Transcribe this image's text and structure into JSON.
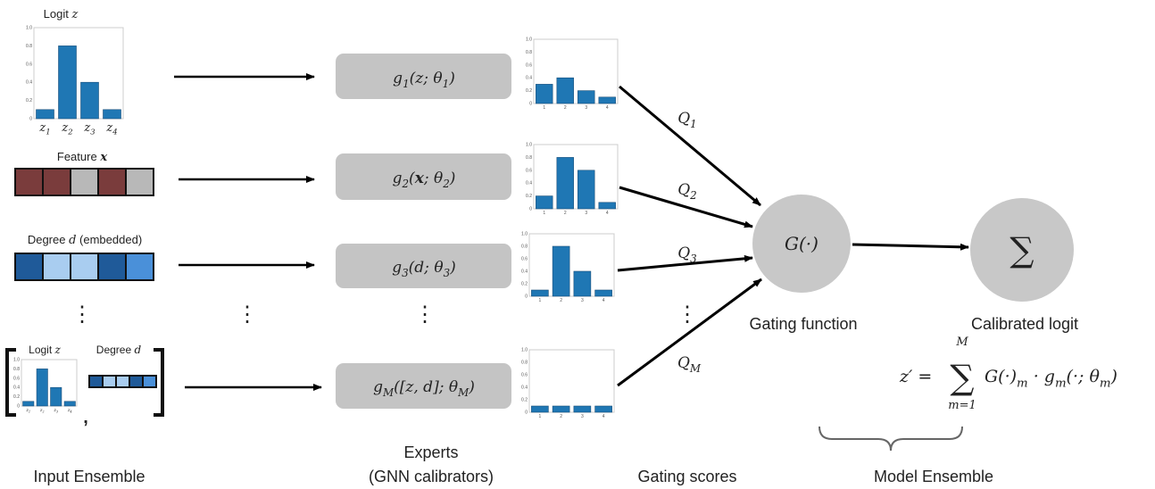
{
  "colors": {
    "bar": "#1f77b4",
    "expert_box": "#c4c4c4",
    "circle": "#c8c8c8",
    "feature_on": "#7a3c3c",
    "feature_off": "#b8b8b8",
    "deg_dark": "#1f5a99",
    "deg_light": "#a9cdf0",
    "deg_mid": "#4a90d9"
  },
  "input": {
    "logit_title": "Logit",
    "logit_var": "z",
    "feature_title": "Feature",
    "feature_var": "x",
    "feature_cells": [
      "on",
      "on",
      "off",
      "on",
      "off"
    ],
    "degree_title": "Degree",
    "degree_var": "d",
    "degree_suffix": "(embedded)",
    "degree_cells": [
      "deg_dark",
      "deg_light",
      "deg_light",
      "deg_dark",
      "deg_mid"
    ],
    "combo_logit_title": "Logit",
    "combo_degree_title": "Degree",
    "ellipsis": "⋮",
    "comma": ",",
    "label": "Input Ensemble"
  },
  "experts": {
    "items": [
      [
        {
          "t": "g"
        },
        {
          "s": "1"
        },
        {
          "t": "(z; θ"
        },
        {
          "s": "1"
        },
        {
          "t": ")"
        }
      ],
      [
        {
          "t": "g"
        },
        {
          "s": "2"
        },
        {
          "t": "("
        },
        {
          "b": "x"
        },
        {
          "t": "; θ"
        },
        {
          "s": "2"
        },
        {
          "t": ")"
        }
      ],
      [
        {
          "t": "g"
        },
        {
          "s": "3"
        },
        {
          "t": "(d; θ"
        },
        {
          "s": "3"
        },
        {
          "t": ")"
        }
      ],
      [
        {
          "t": "g"
        },
        {
          "s": "M"
        },
        {
          "t": "([z, d]; θ"
        },
        {
          "s": "M"
        },
        {
          "t": ")"
        }
      ]
    ],
    "ellipsis": "⋮",
    "label_line1": "Experts",
    "label_line2": "(GNN calibrators)"
  },
  "gating": {
    "q_labels": [
      [
        {
          "t": "Q"
        },
        {
          "s": "1"
        }
      ],
      [
        {
          "t": "Q"
        },
        {
          "s": "2"
        }
      ],
      [
        {
          "t": "Q"
        },
        {
          "s": "3"
        }
      ],
      [
        {
          "t": "Q"
        },
        {
          "s": "M"
        }
      ]
    ],
    "ellipsis": "⋮",
    "label": "Gating scores",
    "node_label": "G(·)",
    "node_caption": "Gating function"
  },
  "ensemble": {
    "node_label": "∑",
    "caption": "Calibrated logit",
    "formula_lhs": "z′ =",
    "sum_symbol": "∑",
    "sum_upper": "M",
    "sum_lower": "m=1",
    "formula_rhs": [
      {
        "t": "G(·)"
      },
      {
        "s": "m"
      },
      {
        "t": " · g"
      },
      {
        "s": "m"
      },
      {
        "t": "(·; θ"
      },
      {
        "s": "m"
      },
      {
        "t": ")"
      }
    ],
    "label": "Model Ensemble"
  },
  "chart_data": [
    {
      "type": "bar",
      "title": "Logit z",
      "categories": [
        "z1",
        "z2",
        "z3",
        "z4"
      ],
      "values": [
        0.1,
        0.8,
        0.4,
        0.1
      ],
      "ylim": [
        0,
        1.0
      ],
      "yticks": [
        "0",
        "0.2",
        "0.4",
        "0.6",
        "0.8",
        "1.0"
      ]
    },
    {
      "type": "bar",
      "categories": [
        "1",
        "2",
        "3",
        "4"
      ],
      "values": [
        0.3,
        0.4,
        0.2,
        0.1
      ],
      "ylim": [
        0,
        1.0
      ],
      "yticks": [
        "0",
        "0.2",
        "0.4",
        "0.6",
        "0.8",
        "1.0"
      ]
    },
    {
      "type": "bar",
      "categories": [
        "1",
        "2",
        "3",
        "4"
      ],
      "values": [
        0.2,
        0.8,
        0.6,
        0.1
      ],
      "ylim": [
        0,
        1.0
      ],
      "yticks": [
        "0",
        "0.2",
        "0.4",
        "0.6",
        "0.8",
        "1.0"
      ]
    },
    {
      "type": "bar",
      "categories": [
        "1",
        "2",
        "3",
        "4"
      ],
      "values": [
        0.1,
        0.8,
        0.4,
        0.1
      ],
      "ylim": [
        0,
        1.0
      ],
      "yticks": [
        "0",
        "0.2",
        "0.4",
        "0.6",
        "0.8",
        "1.0"
      ]
    },
    {
      "type": "bar",
      "categories": [
        "1",
        "2",
        "3",
        "4"
      ],
      "values": [
        0.1,
        0.1,
        0.1,
        0.1
      ],
      "ylim": [
        0,
        1.0
      ],
      "yticks": [
        "0",
        "0.2",
        "0.4",
        "0.6",
        "0.8",
        "1.0"
      ]
    },
    {
      "type": "bar",
      "title": "Logit z",
      "categories": [
        "z1",
        "z2",
        "z3",
        "z4"
      ],
      "values": [
        0.1,
        0.8,
        0.4,
        0.1
      ],
      "ylim": [
        0,
        1.0
      ],
      "yticks": [
        "0",
        "0.2",
        "0.4",
        "0.6",
        "0.8",
        "1.0"
      ]
    }
  ]
}
